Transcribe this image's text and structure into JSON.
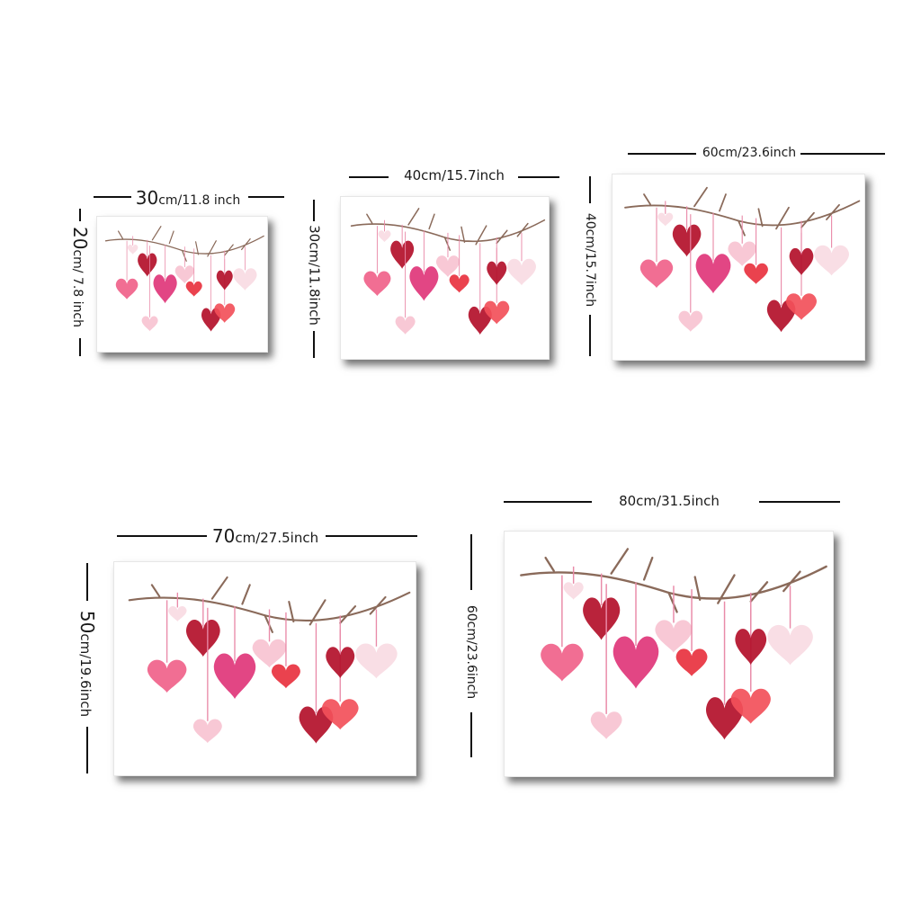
{
  "sizes": [
    {
      "id": "30x20",
      "width_label": {
        "num": "30",
        "unit": "cm/11.8 inch"
      },
      "height_label": {
        "num": "20",
        "unit": "cm/ 7.8 inch"
      }
    },
    {
      "id": "40x30",
      "width_label": {
        "num": "",
        "unit": "40cm/15.7inch"
      },
      "height_label": {
        "num": "",
        "unit": "30cm/11.8inch"
      }
    },
    {
      "id": "60x40",
      "width_label": {
        "num": "",
        "unit": "60cm/23.6inch"
      },
      "height_label": {
        "num": "",
        "unit": "40cm/15.7inch"
      }
    },
    {
      "id": "70x50",
      "width_label": {
        "num": "70",
        "unit": "cm/27.5inch"
      },
      "height_label": {
        "num": "50",
        "unit": "cm/19.6inch"
      }
    },
    {
      "id": "80x60",
      "width_label": {
        "num": "",
        "unit": "80cm/31.5inch"
      },
      "height_label": {
        "num": "",
        "unit": "60cm/23.6inch"
      }
    }
  ],
  "artwork": {
    "subject": "hearts-on-branch",
    "colors": {
      "branch": "#8a6a5a",
      "ribbon": "#e98aa8",
      "heart_light_pink": "#f7c3d1",
      "heart_pink": "#f0628a",
      "heart_magenta": "#e0367a",
      "heart_red": "#e8323f",
      "heart_dark_red": "#b3102a",
      "heart_coral": "#f2505a",
      "heart_blush": "#f9dbe3"
    }
  }
}
